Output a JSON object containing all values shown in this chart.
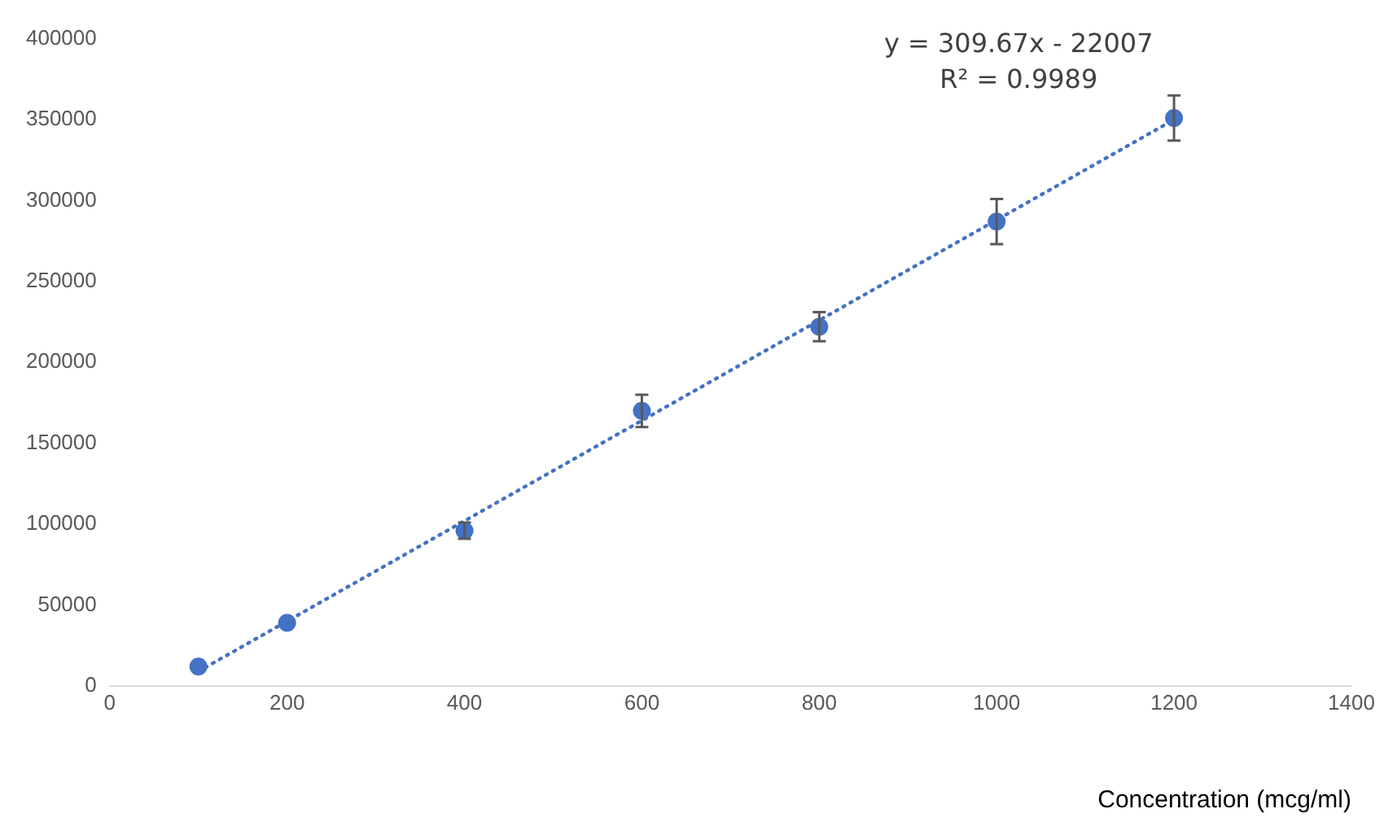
{
  "chart_data": {
    "type": "scatter",
    "xlabel": "Concentration (mcg/ml)",
    "annotations": [
      "y = 309.67x - 22007",
      "R² = 0.9989"
    ],
    "series": [
      {
        "color": "#4472c4",
        "x": [
          100,
          200,
          400,
          600,
          800,
          1000,
          1200
        ],
        "values": [
          12000,
          39000,
          96000,
          170000,
          222000,
          287000,
          351000
        ],
        "errors": [
          null,
          null,
          5000,
          10000,
          9000,
          14000,
          14000
        ],
        "marker": "circle"
      },
      {
        "type": "line",
        "color": "#4472c4",
        "x": [
          100,
          1200
        ],
        "values": [
          9000,
          350000
        ],
        "line_style": "dotted",
        "marker": "none"
      }
    ],
    "xlim": [
      0,
      1400
    ],
    "xticks": [
      0,
      200,
      400,
      600,
      800,
      1000,
      1200,
      1400
    ],
    "ylim": [
      0,
      400000
    ],
    "yticks": [
      0,
      50000,
      100000,
      150000,
      200000,
      250000,
      300000,
      350000,
      400000
    ],
    "grid": false,
    "legend": false
  }
}
